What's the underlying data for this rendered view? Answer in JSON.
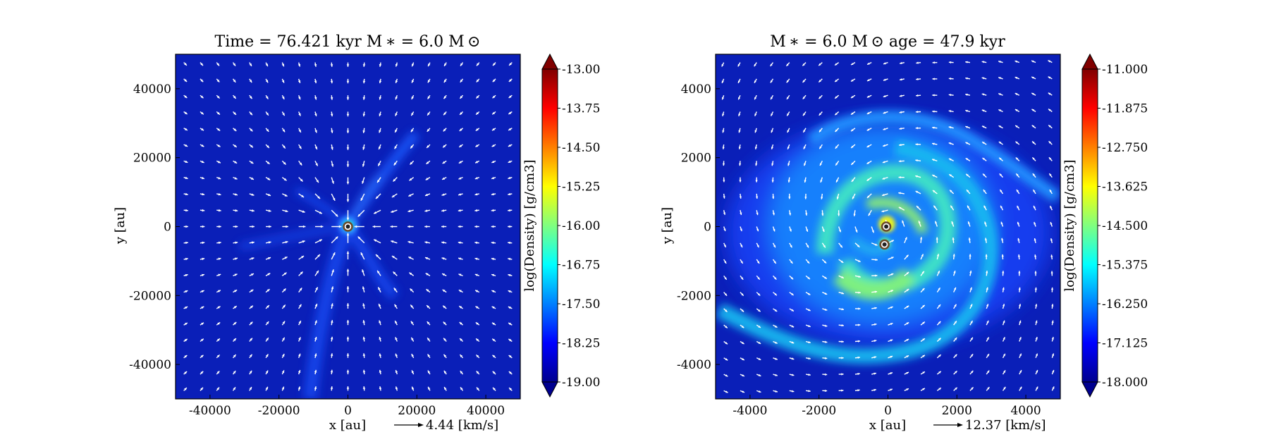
{
  "chart_data": [
    {
      "type": "heatmap",
      "title": "Time = 76.421 kyr    M ∗ = 6.0 M ⊙",
      "xlabel": "x [au]",
      "ylabel": "y [au]",
      "xlim": [
        -50000,
        50000
      ],
      "ylim": [
        -50000,
        50000
      ],
      "xticks": [
        -40000,
        -20000,
        0,
        20000,
        40000
      ],
      "yticks": [
        40000,
        20000,
        0,
        -20000,
        -40000
      ],
      "xtick_labels": [
        "-40000",
        "-20000",
        "0",
        "20000",
        "40000"
      ],
      "ytick_labels": [
        "40000",
        "20000",
        "0",
        "-20000",
        "-40000"
      ],
      "colorbar": {
        "label": "log(Density) [g/cm3]",
        "range": [
          -19.0,
          -13.0
        ],
        "ticks": [
          -13.0,
          -13.75,
          -14.5,
          -15.25,
          -16.0,
          -16.75,
          -17.5,
          -18.25,
          -19.0
        ],
        "tick_labels": [
          "-13.00",
          "-13.75",
          "-14.50",
          "-15.25",
          "-16.00",
          "-16.75",
          "-17.50",
          "-18.25",
          "-19.00"
        ],
        "colormap": "jet",
        "extend": "both"
      },
      "reference_vector": {
        "label": "4.44 [km/s]",
        "value": 4.44,
        "unit": "km/s"
      },
      "sinks": [
        {
          "x": 0,
          "y": 0
        }
      ],
      "structure": "infall",
      "grid": false
    },
    {
      "type": "heatmap",
      "title": "M ∗ = 6.0 M ⊙          age = 47.9 kyr",
      "xlabel": "x [au]",
      "ylabel": "y [au]",
      "xlim": [
        -5000,
        5000
      ],
      "ylim": [
        -5000,
        5000
      ],
      "xticks": [
        -4000,
        -2000,
        0,
        2000,
        4000
      ],
      "yticks": [
        4000,
        2000,
        0,
        -2000,
        -4000
      ],
      "xtick_labels": [
        "-4000",
        "-2000",
        "0",
        "2000",
        "4000"
      ],
      "ytick_labels": [
        "4000",
        "2000",
        "0",
        "-2000",
        "-4000"
      ],
      "colorbar": {
        "label": "log(Density) [g/cm3]",
        "range": [
          -18.0,
          -11.0
        ],
        "ticks": [
          -11.0,
          -11.875,
          -12.75,
          -13.625,
          -14.5,
          -15.375,
          -16.25,
          -17.125,
          -18.0
        ],
        "tick_labels": [
          "-11.000",
          "-11.875",
          "-12.750",
          "-13.625",
          "-14.500",
          "-15.375",
          "-16.250",
          "-17.125",
          "-18.000"
        ],
        "colormap": "jet",
        "extend": "both"
      },
      "reference_vector": {
        "label": "12.37 [km/s]",
        "value": 12.37,
        "unit": "km/s"
      },
      "sinks": [
        {
          "x": -50,
          "y": 0
        },
        {
          "x": -100,
          "y": -520
        }
      ],
      "structure": "disk",
      "grid": false
    }
  ]
}
